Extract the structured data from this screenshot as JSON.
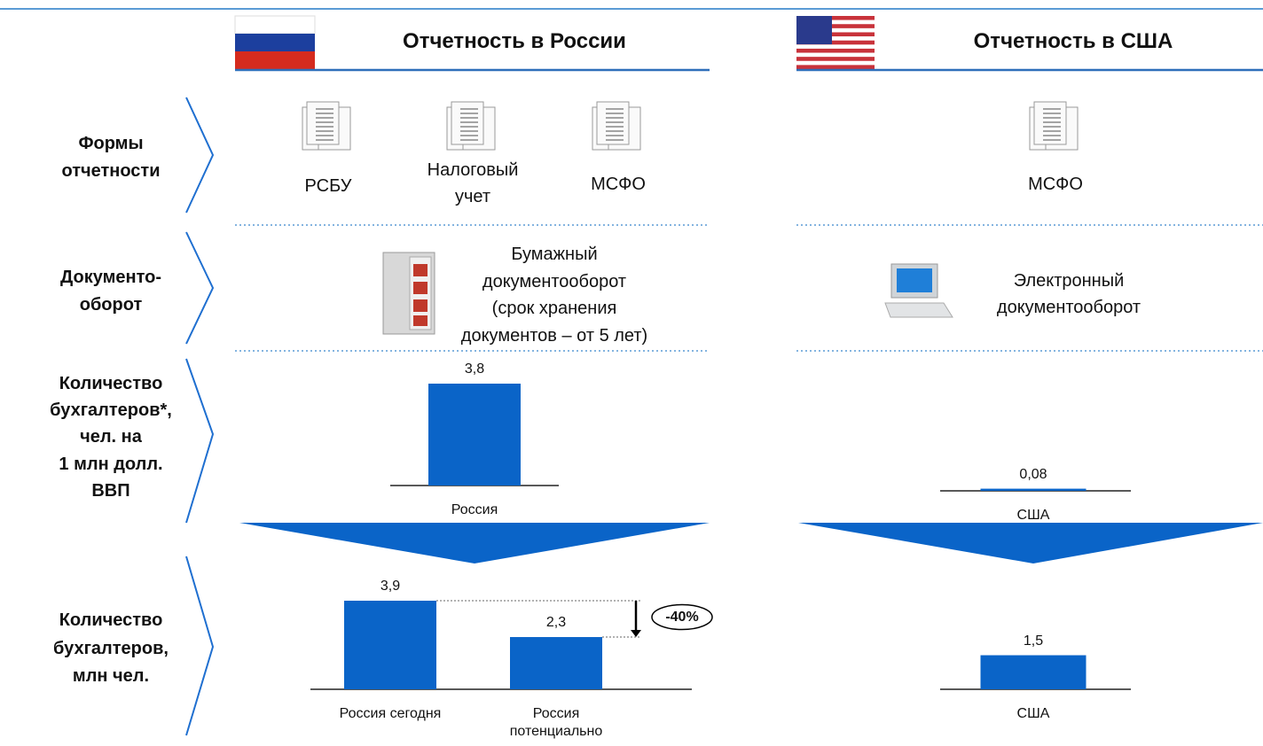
{
  "header": {
    "left_title": "Отчетность в России",
    "right_title": "Отчетность в США"
  },
  "rows": [
    {
      "label": [
        "Формы",
        "отчетности"
      ]
    },
    {
      "label": [
        "Документо-",
        "оборот"
      ]
    },
    {
      "label": [
        "Количество",
        "бухгалтеров*,",
        "чел. на",
        "1 млн долл.",
        "ВВП"
      ]
    },
    {
      "label": [
        "Количество",
        "бухгалтеров,",
        "млн чел."
      ]
    }
  ],
  "russia": {
    "forms": [
      [
        "РСБУ"
      ],
      [
        "Налоговый",
        "учет"
      ],
      [
        "МСФО"
      ]
    ],
    "workflow": [
      "Бумажный",
      "документооборот",
      "(срок хранения",
      "документов – от 5 лет)"
    ]
  },
  "usa": {
    "forms": [
      [
        "МСФО"
      ]
    ],
    "workflow": [
      "Электронный",
      "документооборот"
    ]
  },
  "chart_data": [
    {
      "type": "bar",
      "categories": [
        "Россия"
      ],
      "values": [
        3.8
      ],
      "value_labels": [
        "3,8"
      ],
      "color": "#0a64c8"
    },
    {
      "type": "bar",
      "categories": [
        "США"
      ],
      "values": [
        0.08
      ],
      "value_labels": [
        "0,08"
      ],
      "color": "#0a64c8"
    },
    {
      "type": "bar",
      "categories": [
        "Россия сегодня",
        "Россия потенциально"
      ],
      "values": [
        3.9,
        2.3
      ],
      "value_labels": [
        "3,9",
        "2,3"
      ],
      "color": "#0a64c8",
      "annotation": "-40%"
    },
    {
      "type": "bar",
      "categories": [
        "США"
      ],
      "values": [
        1.5
      ],
      "value_labels": [
        "1,5"
      ],
      "color": "#0a64c8"
    }
  ]
}
